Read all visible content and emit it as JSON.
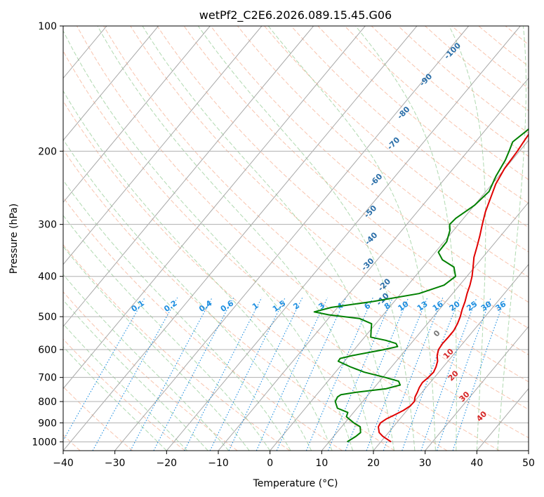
{
  "chart_data": {
    "type": "line",
    "title": "wetPf2_C2E6.2026.089.15.45.G06",
    "xlabel": "Temperature (°C)",
    "ylabel": "Pressure (hPa)",
    "xlim": [
      -40,
      50
    ],
    "ylim": [
      1050,
      100
    ],
    "yscale": "log",
    "grid": true,
    "x_ticks": [
      "−40",
      "−30",
      "−20",
      "−10",
      "0",
      "10",
      "20",
      "30",
      "40",
      "50"
    ],
    "x_tick_values": [
      -40,
      -30,
      -20,
      -10,
      0,
      10,
      20,
      30,
      40,
      50
    ],
    "y_ticks": [
      "100",
      "200",
      "300",
      "400",
      "500",
      "600",
      "700",
      "800",
      "900",
      "1000"
    ],
    "y_tick_values": [
      100,
      200,
      300,
      400,
      500,
      600,
      700,
      800,
      900,
      1000
    ],
    "series": [
      {
        "role": "temperature",
        "color": "#e00000",
        "points": [
          [
            1000,
            22
          ],
          [
            970,
            19.5
          ],
          [
            950,
            18.2
          ],
          [
            920,
            17.1
          ],
          [
            900,
            16.9
          ],
          [
            880,
            17.4
          ],
          [
            860,
            18.4
          ],
          [
            840,
            19.3
          ],
          [
            820,
            19.9
          ],
          [
            800,
            20.0
          ],
          [
            780,
            19.4
          ],
          [
            760,
            19.1
          ],
          [
            740,
            18.7
          ],
          [
            720,
            18.5
          ],
          [
            700,
            18.8
          ],
          [
            680,
            19.0
          ],
          [
            660,
            18.6
          ],
          [
            640,
            18.0
          ],
          [
            620,
            17.0
          ],
          [
            600,
            16.3
          ],
          [
            580,
            16.1
          ],
          [
            560,
            16.2
          ],
          [
            540,
            16.2
          ],
          [
            520,
            15.8
          ],
          [
            500,
            15.2
          ],
          [
            480,
            14.4
          ],
          [
            460,
            13.7
          ],
          [
            440,
            12.8
          ],
          [
            420,
            12.0
          ],
          [
            400,
            11.0
          ],
          [
            380,
            9.7
          ],
          [
            360,
            8.3
          ],
          [
            340,
            7.2
          ],
          [
            320,
            6.0
          ],
          [
            300,
            4.6
          ],
          [
            280,
            3.2
          ],
          [
            260,
            2.0
          ],
          [
            240,
            0.7
          ],
          [
            220,
            -0.1
          ],
          [
            200,
            -0.4
          ],
          [
            190,
            -0.7
          ],
          [
            180,
            -1.0
          ],
          [
            170,
            -1.2
          ],
          [
            160,
            -0.6
          ],
          [
            150,
            2.0
          ],
          [
            140,
            5.5
          ],
          [
            130,
            7.2
          ],
          [
            120,
            7.6
          ],
          [
            110,
            9.5
          ],
          [
            105,
            11.5
          ],
          [
            100,
            14.0
          ]
        ]
      },
      {
        "role": "dewpoint",
        "color": "#008000",
        "points": [
          [
            1000,
            13.5
          ],
          [
            970,
            14.3
          ],
          [
            950,
            14.6
          ],
          [
            920,
            13.6
          ],
          [
            900,
            11.7
          ],
          [
            870,
            9.3
          ],
          [
            850,
            8.9
          ],
          [
            830,
            6.2
          ],
          [
            800,
            4.7
          ],
          [
            780,
            4.4
          ],
          [
            770,
            4.7
          ],
          [
            760,
            7.3
          ],
          [
            745,
            12.5
          ],
          [
            730,
            14.6
          ],
          [
            715,
            13.7
          ],
          [
            700,
            10.5
          ],
          [
            680,
            5.6
          ],
          [
            660,
            2.0
          ],
          [
            640,
            -1.2
          ],
          [
            630,
            -1.3
          ],
          [
            620,
            0.7
          ],
          [
            600,
            5.8
          ],
          [
            590,
            7.9
          ],
          [
            580,
            7.1
          ],
          [
            570,
            4.6
          ],
          [
            560,
            1.2
          ],
          [
            540,
            0.2
          ],
          [
            520,
            -0.8
          ],
          [
            505,
            -4.0
          ],
          [
            495,
            -10.5
          ],
          [
            487,
            -13.8
          ],
          [
            475,
            -11.2
          ],
          [
            460,
            -4.2
          ],
          [
            440,
            3.5
          ],
          [
            420,
            7.0
          ],
          [
            400,
            7.8
          ],
          [
            380,
            6.0
          ],
          [
            365,
            2.6
          ],
          [
            350,
            0.6
          ],
          [
            330,
            0.5
          ],
          [
            310,
            -0.7
          ],
          [
            300,
            -1.7
          ],
          [
            290,
            -1.5
          ],
          [
            270,
            0.0
          ],
          [
            250,
            0.6
          ],
          [
            230,
            -0.5
          ],
          [
            210,
            -1.3
          ],
          [
            200,
            -2.0
          ],
          [
            190,
            -2.8
          ],
          [
            180,
            -2.0
          ],
          [
            170,
            -1.3
          ],
          [
            160,
            -1.4
          ],
          [
            150,
            -3.6
          ],
          [
            140,
            -5.5
          ],
          [
            130,
            -3.0
          ],
          [
            120,
            0.4
          ],
          [
            110,
            1.6
          ],
          [
            100,
            1.6
          ]
        ]
      }
    ],
    "dry_adiabat_labels": [
      "-100",
      "-90",
      "-80",
      "-70",
      "-60",
      "-50",
      "-40",
      "-30",
      "-20",
      "-10"
    ],
    "mixing_ratio_labels": [
      "0.1",
      "0.2",
      "0.4",
      "0.6",
      "1",
      "1.5",
      "2",
      "3",
      "4",
      "6",
      "8",
      "10",
      "13",
      "16",
      "20",
      "25",
      "30",
      "36"
    ],
    "moist_adiabat_labels": [
      "0",
      "10",
      "20",
      "30",
      "40"
    ],
    "colors": {
      "isobar": "#b0b0b0",
      "isotherm": "#a8a8a8",
      "dry_adiabat": "#f4a582",
      "moist_adiabat": "#8fc98f",
      "mixing_ratio": "#1f8fe0",
      "dry_label": "#2a6ea8",
      "mixing_label": "#1f8fe0",
      "moist_label": "#d62828",
      "moist_zero_label": "#777777"
    }
  }
}
